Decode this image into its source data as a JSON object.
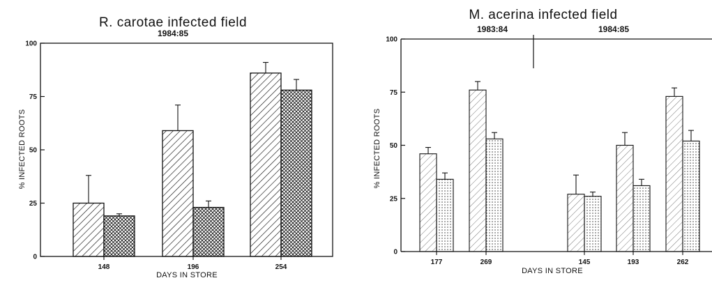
{
  "chart_data": [
    {
      "type": "bar",
      "title": "R. carotae infected field",
      "subtitle": "1984:85",
      "xlabel": "DAYS IN STORE",
      "ylabel": "% INFECTED ROOTS",
      "ylim": [
        0,
        100
      ],
      "yticks": [
        "0",
        "25",
        "50",
        "75",
        "100"
      ],
      "categories": [
        "148",
        "196",
        "254"
      ],
      "series": [
        {
          "values": [
            25,
            59,
            86
          ],
          "errors": [
            13,
            12,
            5
          ],
          "pattern": "diagonal-hatch"
        },
        {
          "values": [
            19,
            23,
            78
          ],
          "errors": [
            1,
            3,
            5
          ],
          "pattern": "cross-hatch"
        }
      ],
      "grid": false
    },
    {
      "type": "bar",
      "title": "M. acerina infected field",
      "season_labels": [
        "1983:84",
        "1984:85"
      ],
      "xlabel": "DAYS IN STORE",
      "ylabel": "% INFECTED ROOTS",
      "ylim": [
        0,
        100
      ],
      "yticks": [
        "0",
        "25",
        "50",
        "75",
        "100"
      ],
      "categories": [
        "177",
        "269",
        "145",
        "193",
        "262"
      ],
      "series": [
        {
          "values": [
            46,
            76,
            27,
            50,
            73
          ],
          "errors": [
            3,
            4,
            9,
            6,
            4
          ],
          "pattern": "diagonal-hatch"
        },
        {
          "values": [
            34,
            53,
            26,
            31,
            52
          ],
          "errors": [
            3,
            3,
            2,
            3,
            5
          ],
          "pattern": "cross-hatch"
        }
      ],
      "grid": false
    }
  ]
}
